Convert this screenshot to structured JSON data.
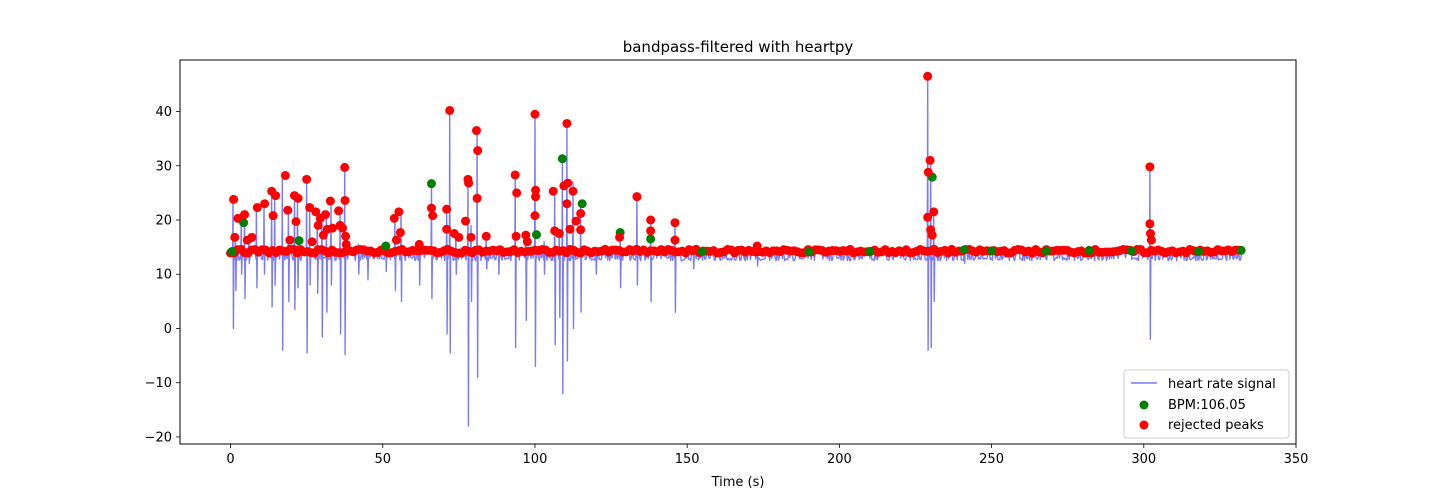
{
  "chart_data": {
    "type": "line",
    "title": "bandpass-filtered with heartpy",
    "xlabel": "Time (s)",
    "ylabel": "",
    "xlim": [
      -16.6,
      350
    ],
    "ylim": [
      -21.3,
      49.5
    ],
    "xticks": [
      0,
      50,
      100,
      150,
      200,
      250,
      300,
      350
    ],
    "yticks": [
      -20,
      -10,
      0,
      10,
      20,
      30,
      40
    ],
    "grid": false,
    "legend_position": "lower-right",
    "colors": {
      "signal": "#7b7bf5",
      "accepted": "#008000",
      "rejected": "#ff0000"
    },
    "series": [
      {
        "name": "heart rate signal",
        "kind": "line",
        "baseline": 13.2,
        "x_end": 333,
        "spikes": [
          [
            0.8,
            23.8,
            0.0
          ],
          [
            1.6,
            17.0,
            7.0
          ],
          [
            3.5,
            19.8,
            10.0
          ],
          [
            4.6,
            21.0,
            5.5
          ],
          [
            6.0,
            16.5,
            12.0
          ],
          [
            8.5,
            22.5,
            7.5
          ],
          [
            11.0,
            23.0,
            10.0
          ],
          [
            13.5,
            25.5,
            4.0
          ],
          [
            14.5,
            24.5,
            8.0
          ],
          [
            17.0,
            27.5,
            -4.0
          ],
          [
            19.0,
            22.0,
            5.0
          ],
          [
            21.0,
            24.5,
            3.5
          ],
          [
            22.0,
            24.0,
            7.5
          ],
          [
            25.0,
            27.6,
            -4.5
          ],
          [
            26.0,
            22.5,
            8.0
          ],
          [
            28.5,
            21.5,
            6.5
          ],
          [
            30.0,
            20.5,
            -1.5
          ],
          [
            31.5,
            21.0,
            3.0
          ],
          [
            33.0,
            23.5,
            8.0
          ],
          [
            36.0,
            21.5,
            -1.0
          ],
          [
            37.5,
            29.7,
            -4.8
          ],
          [
            42.0,
            15.5,
            10.0
          ],
          [
            45.0,
            15.0,
            9.0
          ],
          [
            51.0,
            15.5,
            10.5
          ],
          [
            54.0,
            20.5,
            7.0
          ],
          [
            56.0,
            21.5,
            5.0
          ],
          [
            62.0,
            15.5,
            8.0
          ],
          [
            66.0,
            26.7,
            5.5
          ],
          [
            71.0,
            22.0,
            -1.0
          ],
          [
            72.0,
            40.2,
            -4.5
          ],
          [
            74.0,
            17.5,
            10.0
          ],
          [
            78.0,
            27.5,
            -18.0
          ],
          [
            79.0,
            19.0,
            5.0
          ],
          [
            81.0,
            36.5,
            -9.0
          ],
          [
            84.0,
            17.0,
            11.0
          ],
          [
            88.0,
            15.0,
            10.0
          ],
          [
            93.5,
            28.5,
            -3.5
          ],
          [
            97.0,
            17.0,
            1.5
          ],
          [
            100.0,
            39.5,
            -7.0
          ],
          [
            103.0,
            16.0,
            10.0
          ],
          [
            106.5,
            25.3,
            -3.0
          ],
          [
            108.0,
            17.5,
            2.0
          ],
          [
            109.0,
            31.3,
            -12.0
          ],
          [
            110.5,
            37.8,
            -6.0
          ],
          [
            112.5,
            27.0,
            0.0
          ],
          [
            115.0,
            23.0,
            3.0
          ],
          [
            120.0,
            15.0,
            10.0
          ],
          [
            128.0,
            17.5,
            7.5
          ],
          [
            133.5,
            24.3,
            8.0
          ],
          [
            138.0,
            20.0,
            5.0
          ],
          [
            146.0,
            19.5,
            3.0
          ],
          [
            152.0,
            14.5,
            11.0
          ],
          [
            173.0,
            15.2,
            11.5
          ],
          [
            229.0,
            46.5,
            -4.0
          ],
          [
            230.0,
            31.0,
            -3.5
          ],
          [
            231.0,
            21.5,
            5.0
          ],
          [
            302.0,
            29.8,
            -2.0
          ],
          [
            241.0,
            14.5,
            12.0
          ]
        ]
      },
      {
        "name": "BPM:106.05",
        "kind": "scatter",
        "points": [
          [
            0.5,
            14.2
          ],
          [
            4.3,
            19.5
          ],
          [
            22.5,
            16.2
          ],
          [
            51.0,
            15.2
          ],
          [
            66.0,
            26.7
          ],
          [
            100.5,
            17.3
          ],
          [
            109.0,
            31.3
          ],
          [
            115.5,
            23.0
          ],
          [
            128.0,
            17.7
          ],
          [
            138.0,
            16.5
          ],
          [
            230.5,
            27.9
          ],
          [
            241.0,
            14.5
          ],
          [
            250.0,
            14.3
          ],
          [
            268.0,
            14.3
          ],
          [
            282.0,
            14.4
          ],
          [
            296.0,
            14.3
          ],
          [
            318.0,
            14.2
          ],
          [
            332.0,
            14.4
          ],
          [
            155.0,
            14.2
          ],
          [
            190.0,
            14.1
          ],
          [
            210.0,
            14.2
          ]
        ]
      },
      {
        "name": "rejected peaks",
        "kind": "scatter",
        "points": [
          [
            1.0,
            23.8
          ],
          [
            1.4,
            16.8
          ],
          [
            2.4,
            20.3
          ],
          [
            4.6,
            21.0
          ],
          [
            5.5,
            16.3
          ],
          [
            7.0,
            16.8
          ],
          [
            8.8,
            22.3
          ],
          [
            11.2,
            23.0
          ],
          [
            13.5,
            25.3
          ],
          [
            14.0,
            20.8
          ],
          [
            14.8,
            24.5
          ],
          [
            18.0,
            28.2
          ],
          [
            18.8,
            21.8
          ],
          [
            19.5,
            16.3
          ],
          [
            21.0,
            24.5
          ],
          [
            21.5,
            19.7
          ],
          [
            22.2,
            24.0
          ],
          [
            25.0,
            27.5
          ],
          [
            26.0,
            22.3
          ],
          [
            26.8,
            16.0
          ],
          [
            28.0,
            21.5
          ],
          [
            28.8,
            19.0
          ],
          [
            29.5,
            20.3
          ],
          [
            30.5,
            17.2
          ],
          [
            31.2,
            21.0
          ],
          [
            31.8,
            18.3
          ],
          [
            32.8,
            23.5
          ],
          [
            33.5,
            18.5
          ],
          [
            35.5,
            21.7
          ],
          [
            36.0,
            19.0
          ],
          [
            36.8,
            18.5
          ],
          [
            37.5,
            29.7
          ],
          [
            37.6,
            23.6
          ],
          [
            37.8,
            17.0
          ],
          [
            38.0,
            15.5
          ],
          [
            53.8,
            20.3
          ],
          [
            55.3,
            21.5
          ],
          [
            55.8,
            17.7
          ],
          [
            54.5,
            16.3
          ],
          [
            62.0,
            15.5
          ],
          [
            66.0,
            22.2
          ],
          [
            66.4,
            20.8
          ],
          [
            71.0,
            22.0
          ],
          [
            71.0,
            18.3
          ],
          [
            72.0,
            40.2
          ],
          [
            73.5,
            17.5
          ],
          [
            75.0,
            16.8
          ],
          [
            77.2,
            19.8
          ],
          [
            78.0,
            27.5
          ],
          [
            78.2,
            26.8
          ],
          [
            79.0,
            16.8
          ],
          [
            80.8,
            36.5
          ],
          [
            81.2,
            32.8
          ],
          [
            81.0,
            24.0
          ],
          [
            84.0,
            17.0
          ],
          [
            93.5,
            28.3
          ],
          [
            94.0,
            25.0
          ],
          [
            93.8,
            17.0
          ],
          [
            97.0,
            17.2
          ],
          [
            97.5,
            16.0
          ],
          [
            100.0,
            39.5
          ],
          [
            100.2,
            25.5
          ],
          [
            100.2,
            24.3
          ],
          [
            100.0,
            20.8
          ],
          [
            106.0,
            25.3
          ],
          [
            106.5,
            18.0
          ],
          [
            108.0,
            17.5
          ],
          [
            109.5,
            26.3
          ],
          [
            110.5,
            37.8
          ],
          [
            110.8,
            26.8
          ],
          [
            110.5,
            23.0
          ],
          [
            111.5,
            18.3
          ],
          [
            112.5,
            25.3
          ],
          [
            113.5,
            19.8
          ],
          [
            115.0,
            21.2
          ],
          [
            115.0,
            18.2
          ],
          [
            127.8,
            16.8
          ],
          [
            133.5,
            24.3
          ],
          [
            138.0,
            20.0
          ],
          [
            138.0,
            18.0
          ],
          [
            146.0,
            19.5
          ],
          [
            146.0,
            16.3
          ],
          [
            173.0,
            15.2
          ],
          [
            229.0,
            46.5
          ],
          [
            229.2,
            28.8
          ],
          [
            229.8,
            31.0
          ],
          [
            229.0,
            20.5
          ],
          [
            230.0,
            18.2
          ],
          [
            230.5,
            17.2
          ],
          [
            231.0,
            21.5
          ],
          [
            302.0,
            29.8
          ],
          [
            302.0,
            19.3
          ],
          [
            302.2,
            17.5
          ],
          [
            302.5,
            16.3
          ]
        ],
        "baseline_band": {
          "x_start": 0,
          "x_end": 332,
          "step": 1.15,
          "y_min": 13.9,
          "y_max": 14.6
        }
      }
    ]
  }
}
